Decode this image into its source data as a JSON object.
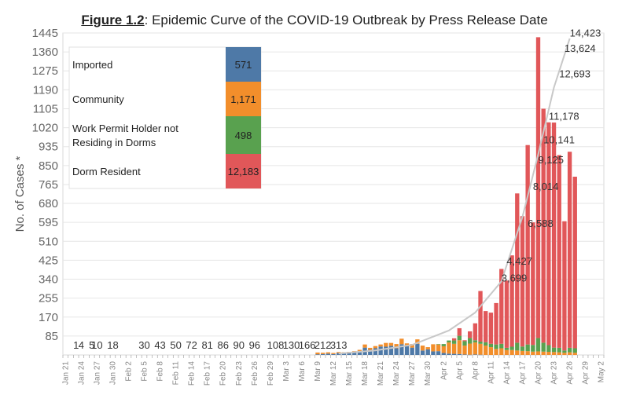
{
  "figure": {
    "label": "Figure 1.2",
    "title_rest": ": Epidemic Curve of the COVID-19 Outbreak by Press Release Date"
  },
  "chart_data": {
    "type": "bar",
    "stacked": true,
    "title": "Epidemic Curve of the COVID-19 Outbreak by Press Release Date",
    "ylabel": "No. of Cases *",
    "xlabel": "",
    "ylim": [
      0,
      1445
    ],
    "yticks": [
      85,
      170,
      255,
      340,
      425,
      510,
      595,
      680,
      765,
      850,
      935,
      1020,
      1105,
      1190,
      1275,
      1360,
      1445
    ],
    "grid": true,
    "x_start": "2020-01-21",
    "x_end": "2020-05-02",
    "x_tick_labels": [
      "Jan 21",
      "Jan 24",
      "Jan 27",
      "Jan 30",
      "Feb 2",
      "Feb 5",
      "Feb 8",
      "Feb 11",
      "Feb 14",
      "Feb 17",
      "Feb 20",
      "Feb 23",
      "Feb 26",
      "Feb 29",
      "Mar 3",
      "Mar 6",
      "Mar 9",
      "Mar 12",
      "Mar 15",
      "Mar 18",
      "Mar 21",
      "Mar 24",
      "Mar 27",
      "Mar 30",
      "Apr 2",
      "Apr 5",
      "Apr 8",
      "Apr 11",
      "Apr 14",
      "Apr 17",
      "Apr 20",
      "Apr 23",
      "Apr 26",
      "Apr 29",
      "May 2"
    ],
    "series": [
      {
        "name": "Imported",
        "color": "#4e79a7"
      },
      {
        "name": "Community",
        "color": "#f28e2b"
      },
      {
        "name": "Work Permit Holder not Residing in Dorms",
        "color": "#59a14f"
      },
      {
        "name": "Dorm Resident",
        "color": "#e15759"
      }
    ],
    "legend": {
      "position": "top-left",
      "entries": [
        {
          "name": "Imported",
          "total": "571",
          "color": "#4e79a7"
        },
        {
          "name": "Community",
          "total": "1,171",
          "color": "#f28e2b"
        },
        {
          "name": "Work Permit Holder not Residing in Dorms",
          "total": "498",
          "color": "#59a14f"
        },
        {
          "name": "Dorm Resident",
          "total": "12,183",
          "color": "#e15759"
        }
      ]
    },
    "daily": [
      {
        "date": "2020-03-09",
        "imported": 3,
        "community": 8,
        "wp": 0,
        "dorm": 0
      },
      {
        "date": "2020-03-10",
        "imported": 4,
        "community": 6,
        "wp": 0,
        "dorm": 0
      },
      {
        "date": "2020-03-11",
        "imported": 6,
        "community": 6,
        "wp": 0,
        "dorm": 0
      },
      {
        "date": "2020-03-12",
        "imported": 4,
        "community": 5,
        "wp": 0,
        "dorm": 0
      },
      {
        "date": "2020-03-13",
        "imported": 9,
        "community": 4,
        "wp": 0,
        "dorm": 0
      },
      {
        "date": "2020-03-14",
        "imported": 9,
        "community": 3,
        "wp": 0,
        "dorm": 0
      },
      {
        "date": "2020-03-15",
        "imported": 11,
        "community": 3,
        "wp": 0,
        "dorm": 0
      },
      {
        "date": "2020-03-16",
        "imported": 14,
        "community": 3,
        "wp": 0,
        "dorm": 0
      },
      {
        "date": "2020-03-17",
        "imported": 17,
        "community": 6,
        "wp": 0,
        "dorm": 0
      },
      {
        "date": "2020-03-18",
        "imported": 33,
        "community": 14,
        "wp": 0,
        "dorm": 0
      },
      {
        "date": "2020-03-19",
        "imported": 23,
        "community": 9,
        "wp": 0,
        "dorm": 0
      },
      {
        "date": "2020-03-20",
        "imported": 30,
        "community": 10,
        "wp": 0,
        "dorm": 0
      },
      {
        "date": "2020-03-21",
        "imported": 38,
        "community": 9,
        "wp": 0,
        "dorm": 0
      },
      {
        "date": "2020-03-22",
        "imported": 37,
        "community": 17,
        "wp": 0,
        "dorm": 0
      },
      {
        "date": "2020-03-23",
        "imported": 41,
        "community": 13,
        "wp": 0,
        "dorm": 0
      },
      {
        "date": "2020-03-24",
        "imported": 30,
        "community": 19,
        "wp": 0,
        "dorm": 0
      },
      {
        "date": "2020-03-25",
        "imported": 48,
        "community": 25,
        "wp": 0,
        "dorm": 0
      },
      {
        "date": "2020-03-26",
        "imported": 42,
        "community": 10,
        "wp": 0,
        "dorm": 0
      },
      {
        "date": "2020-03-27",
        "imported": 33,
        "community": 16,
        "wp": 0,
        "dorm": 0
      },
      {
        "date": "2020-03-28",
        "imported": 50,
        "community": 20,
        "wp": 0,
        "dorm": 0
      },
      {
        "date": "2020-03-29",
        "imported": 20,
        "community": 22,
        "wp": 0,
        "dorm": 0
      },
      {
        "date": "2020-03-30",
        "imported": 25,
        "community": 10,
        "wp": 0,
        "dorm": 0
      },
      {
        "date": "2020-03-31",
        "imported": 16,
        "community": 32,
        "wp": 0,
        "dorm": 0
      },
      {
        "date": "2020-04-01",
        "imported": 17,
        "community": 30,
        "wp": 2,
        "dorm": 0
      },
      {
        "date": "2020-04-02",
        "imported": 9,
        "community": 30,
        "wp": 10,
        "dorm": 0
      },
      {
        "date": "2020-04-03",
        "imported": 6,
        "community": 50,
        "wp": 9,
        "dorm": 0
      },
      {
        "date": "2020-04-04",
        "imported": 5,
        "community": 45,
        "wp": 15,
        "dorm": 10
      },
      {
        "date": "2020-04-05",
        "imported": 4,
        "community": 62,
        "wp": 20,
        "dorm": 34
      },
      {
        "date": "2020-04-06",
        "imported": 2,
        "community": 40,
        "wp": 20,
        "dorm": 4
      },
      {
        "date": "2020-04-07",
        "imported": 1,
        "community": 50,
        "wp": 25,
        "dorm": 30
      },
      {
        "date": "2020-04-08",
        "imported": 2,
        "community": 54,
        "wp": 10,
        "dorm": 76
      },
      {
        "date": "2020-04-09",
        "imported": 1,
        "community": 49,
        "wp": 10,
        "dorm": 227
      },
      {
        "date": "2020-04-10",
        "imported": 0,
        "community": 42,
        "wp": 15,
        "dorm": 140
      },
      {
        "date": "2020-04-11",
        "imported": 0,
        "community": 35,
        "wp": 15,
        "dorm": 140
      },
      {
        "date": "2020-04-12",
        "imported": 0,
        "community": 27,
        "wp": 20,
        "dorm": 186
      },
      {
        "date": "2020-04-13",
        "imported": 0,
        "community": 30,
        "wp": 20,
        "dorm": 336
      },
      {
        "date": "2020-04-14",
        "imported": 0,
        "community": 22,
        "wp": 10,
        "dorm": 302
      },
      {
        "date": "2020-04-15",
        "imported": 0,
        "community": 22,
        "wp": 15,
        "dorm": 410
      },
      {
        "date": "2020-04-16",
        "imported": 0,
        "community": 20,
        "wp": 35,
        "dorm": 670
      },
      {
        "date": "2020-04-17",
        "imported": 0,
        "community": 18,
        "wp": 20,
        "dorm": 585
      },
      {
        "date": "2020-04-18",
        "imported": 0,
        "community": 17,
        "wp": 30,
        "dorm": 895
      },
      {
        "date": "2020-04-19",
        "imported": 0,
        "community": 15,
        "wp": 30,
        "dorm": 550
      },
      {
        "date": "2020-04-20",
        "imported": 0,
        "community": 16,
        "wp": 60,
        "dorm": 1350
      },
      {
        "date": "2020-04-21",
        "imported": 0,
        "community": 15,
        "wp": 40,
        "dorm": 1050
      },
      {
        "date": "2020-04-22",
        "imported": 0,
        "community": 14,
        "wp": 30,
        "dorm": 1000
      },
      {
        "date": "2020-04-23",
        "imported": 0,
        "community": 13,
        "wp": 20,
        "dorm": 1010
      },
      {
        "date": "2020-04-24",
        "imported": 0,
        "community": 12,
        "wp": 20,
        "dorm": 865
      },
      {
        "date": "2020-04-25",
        "imported": 0,
        "community": 10,
        "wp": 10,
        "dorm": 580
      },
      {
        "date": "2020-04-26",
        "imported": 0,
        "community": 12,
        "wp": 20,
        "dorm": 880
      },
      {
        "date": "2020-04-27",
        "imported": 0,
        "community": 10,
        "wp": 20,
        "dorm": 770
      }
    ],
    "cumulative_labels": [
      {
        "date": "2020-01-23",
        "text": "1"
      },
      {
        "date": "2020-01-24",
        "text": "4"
      },
      {
        "date": "2020-01-26",
        "text": "5"
      },
      {
        "date": "2020-01-27",
        "text": "10"
      },
      {
        "date": "2020-01-30",
        "text": "18"
      },
      {
        "date": "2020-02-05",
        "text": "30"
      },
      {
        "date": "2020-02-08",
        "text": "43"
      },
      {
        "date": "2020-02-11",
        "text": "50"
      },
      {
        "date": "2020-02-14",
        "text": "72"
      },
      {
        "date": "2020-02-17",
        "text": "81"
      },
      {
        "date": "2020-02-20",
        "text": "86"
      },
      {
        "date": "2020-02-23",
        "text": "90"
      },
      {
        "date": "2020-02-26",
        "text": "96"
      },
      {
        "date": "2020-03-01",
        "text": "108"
      },
      {
        "date": "2020-03-04",
        "text": "130"
      },
      {
        "date": "2020-03-07",
        "text": "166"
      },
      {
        "date": "2020-03-10",
        "text": "212"
      },
      {
        "date": "2020-03-13",
        "text": "313"
      },
      {
        "date": "2020-04-13",
        "text": "3,699"
      },
      {
        "date": "2020-04-14",
        "text": "4,427"
      },
      {
        "date": "2020-04-18",
        "text": "6,588"
      },
      {
        "date": "2020-04-19",
        "text": "8,014"
      },
      {
        "date": "2020-04-20",
        "text": "9,125"
      },
      {
        "date": "2020-04-21",
        "text": "10,141"
      },
      {
        "date": "2020-04-22",
        "text": "11,178"
      },
      {
        "date": "2020-04-24",
        "text": "12,693"
      },
      {
        "date": "2020-04-25",
        "text": "13,624"
      },
      {
        "date": "2020-04-26",
        "text": "14,423"
      }
    ]
  }
}
